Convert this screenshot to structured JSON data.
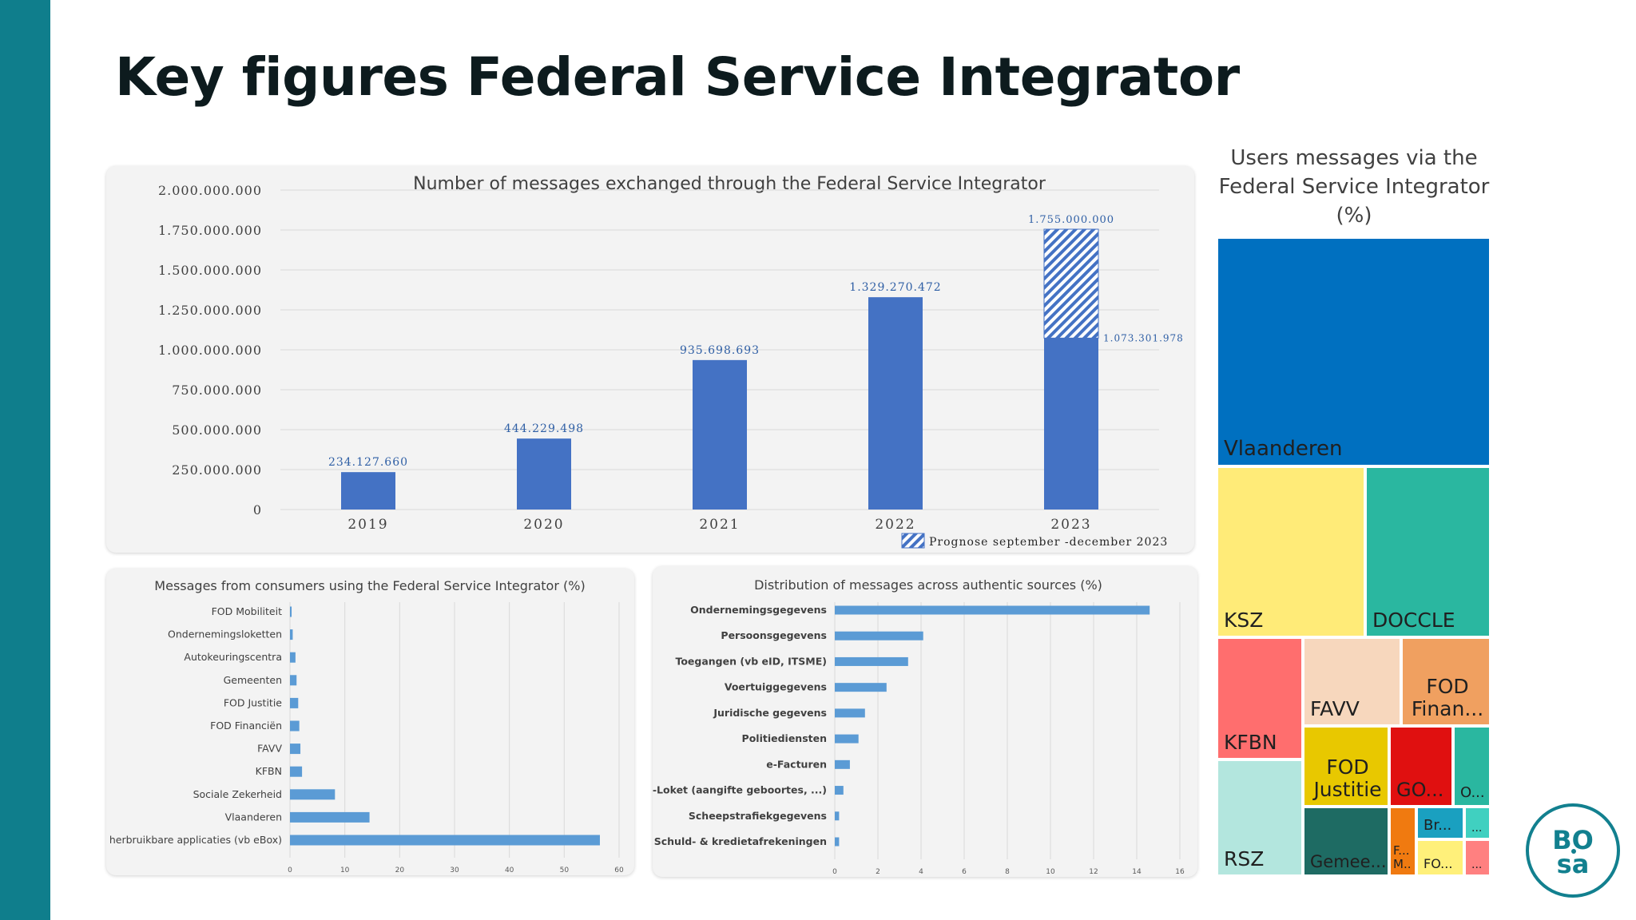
{
  "title": "Key figures Federal Service Integrator",
  "logo": {
    "line1": "BO",
    "line2": "sa"
  },
  "colors": {
    "accent": "#0f7e8c",
    "bar_main": "#4472c4",
    "bar_small": "#5b9bd5"
  },
  "chart_data": [
    {
      "id": "messages-per-year",
      "type": "bar",
      "title": "Number of messages exchanged through the Federal Service Integrator",
      "categories": [
        "2019",
        "2020",
        "2021",
        "2022",
        "2023"
      ],
      "values": [
        234127660,
        444229498,
        935698693,
        1329270472,
        1073301978
      ],
      "value_labels": [
        "234.127.660",
        "444.229.498",
        "935.698.693",
        "1.329.270.472",
        "1.073.301.978"
      ],
      "forecast": {
        "category": "2023",
        "total": 1755000000,
        "label": "1.755.000.000"
      },
      "legend": "Prognose september -december 2023",
      "legend_placement": "bottom-right",
      "ylim": [
        0,
        2000000000
      ],
      "yticks": [
        0,
        250000000,
        500000000,
        750000000,
        1000000000,
        1250000000,
        1500000000,
        1750000000,
        2000000000
      ],
      "ytick_labels": [
        "0",
        "250.000.000",
        "500.000.000",
        "750.000.000",
        "1.000.000.000",
        "1.250.000.000",
        "1.500.000.000",
        "1.750.000.000",
        "2.000.000.000"
      ],
      "grid": true
    },
    {
      "id": "consumers",
      "type": "bar",
      "orientation": "horizontal",
      "title": "Messages from consumers using the Federal Service Integrator (%)",
      "categories": [
        "FOD Mobiliteit",
        "Ondernemingsloketten",
        "Autokeuringscentra",
        "Gemeenten",
        "FOD Justitie",
        "FOD Financiën",
        "FAVV",
        "KFBN",
        "Sociale Zekerheid",
        "Vlaanderen",
        "herbruikbare applicaties (vb eBox)"
      ],
      "values": [
        0.3,
        0.5,
        1.0,
        1.2,
        1.5,
        1.7,
        1.9,
        2.2,
        8.2,
        14.5,
        56.5
      ],
      "xlim": [
        0,
        60
      ],
      "xticks": [
        0,
        10,
        20,
        30,
        40,
        50,
        60
      ],
      "grid": true
    },
    {
      "id": "sources",
      "type": "bar",
      "orientation": "horizontal",
      "title": "Distribution of messages across authentic sources (%)",
      "categories": [
        "Ondernemingsgegevens",
        "Persoonsgegevens",
        "Toegangen (vb eID, ITSME)",
        "Voertuiggegevens",
        "Juridische gegevens",
        "Politiediensten",
        "e-Facturen",
        "e-Loket (aangifte geboortes, ...)",
        "Scheepstrafiekgegevens",
        "Schuld- & kredietafrekeningen"
      ],
      "values": [
        14.6,
        4.1,
        3.4,
        2.4,
        1.4,
        1.1,
        0.7,
        0.4,
        0.2,
        0.2
      ],
      "xlim": [
        0,
        16
      ],
      "xticks": [
        0,
        2,
        4,
        6,
        8,
        10,
        12,
        14,
        16
      ],
      "grid": true
    },
    {
      "id": "users-treemap",
      "type": "treemap",
      "title_lines": [
        "Users messages via the",
        "Federal Service Integrator",
        "(%)"
      ],
      "tiles": [
        {
          "label": "Vlaanderen",
          "color": "#0070c0"
        },
        {
          "label": "KSZ",
          "color": "#ffeb78"
        },
        {
          "label": "DOCCLE",
          "color": "#2ab7a0"
        },
        {
          "label": "KFBN",
          "color": "#ff6e6e"
        },
        {
          "label": "FAVV",
          "color": "#f7d7bd"
        },
        {
          "label": "FOD Finan...",
          "color": "#f0a060"
        },
        {
          "label": "RSZ",
          "color": "#b3e6de"
        },
        {
          "label": "FOD Justitie",
          "color": "#e8c800"
        },
        {
          "label": "GO...",
          "color": "#e01010"
        },
        {
          "label": "O...",
          "color": "#2ab7a0"
        },
        {
          "label": "Gemee...",
          "color": "#1e6b63"
        },
        {
          "label": "F... M...",
          "color": "#f07a10"
        },
        {
          "label": "Br...",
          "color": "#1aa0c0"
        },
        {
          "label": "...",
          "color": "#40d0c0"
        },
        {
          "label": "FO...",
          "color": "#fff07a"
        },
        {
          "label": "...",
          "color": "#ff8080"
        }
      ]
    }
  ]
}
